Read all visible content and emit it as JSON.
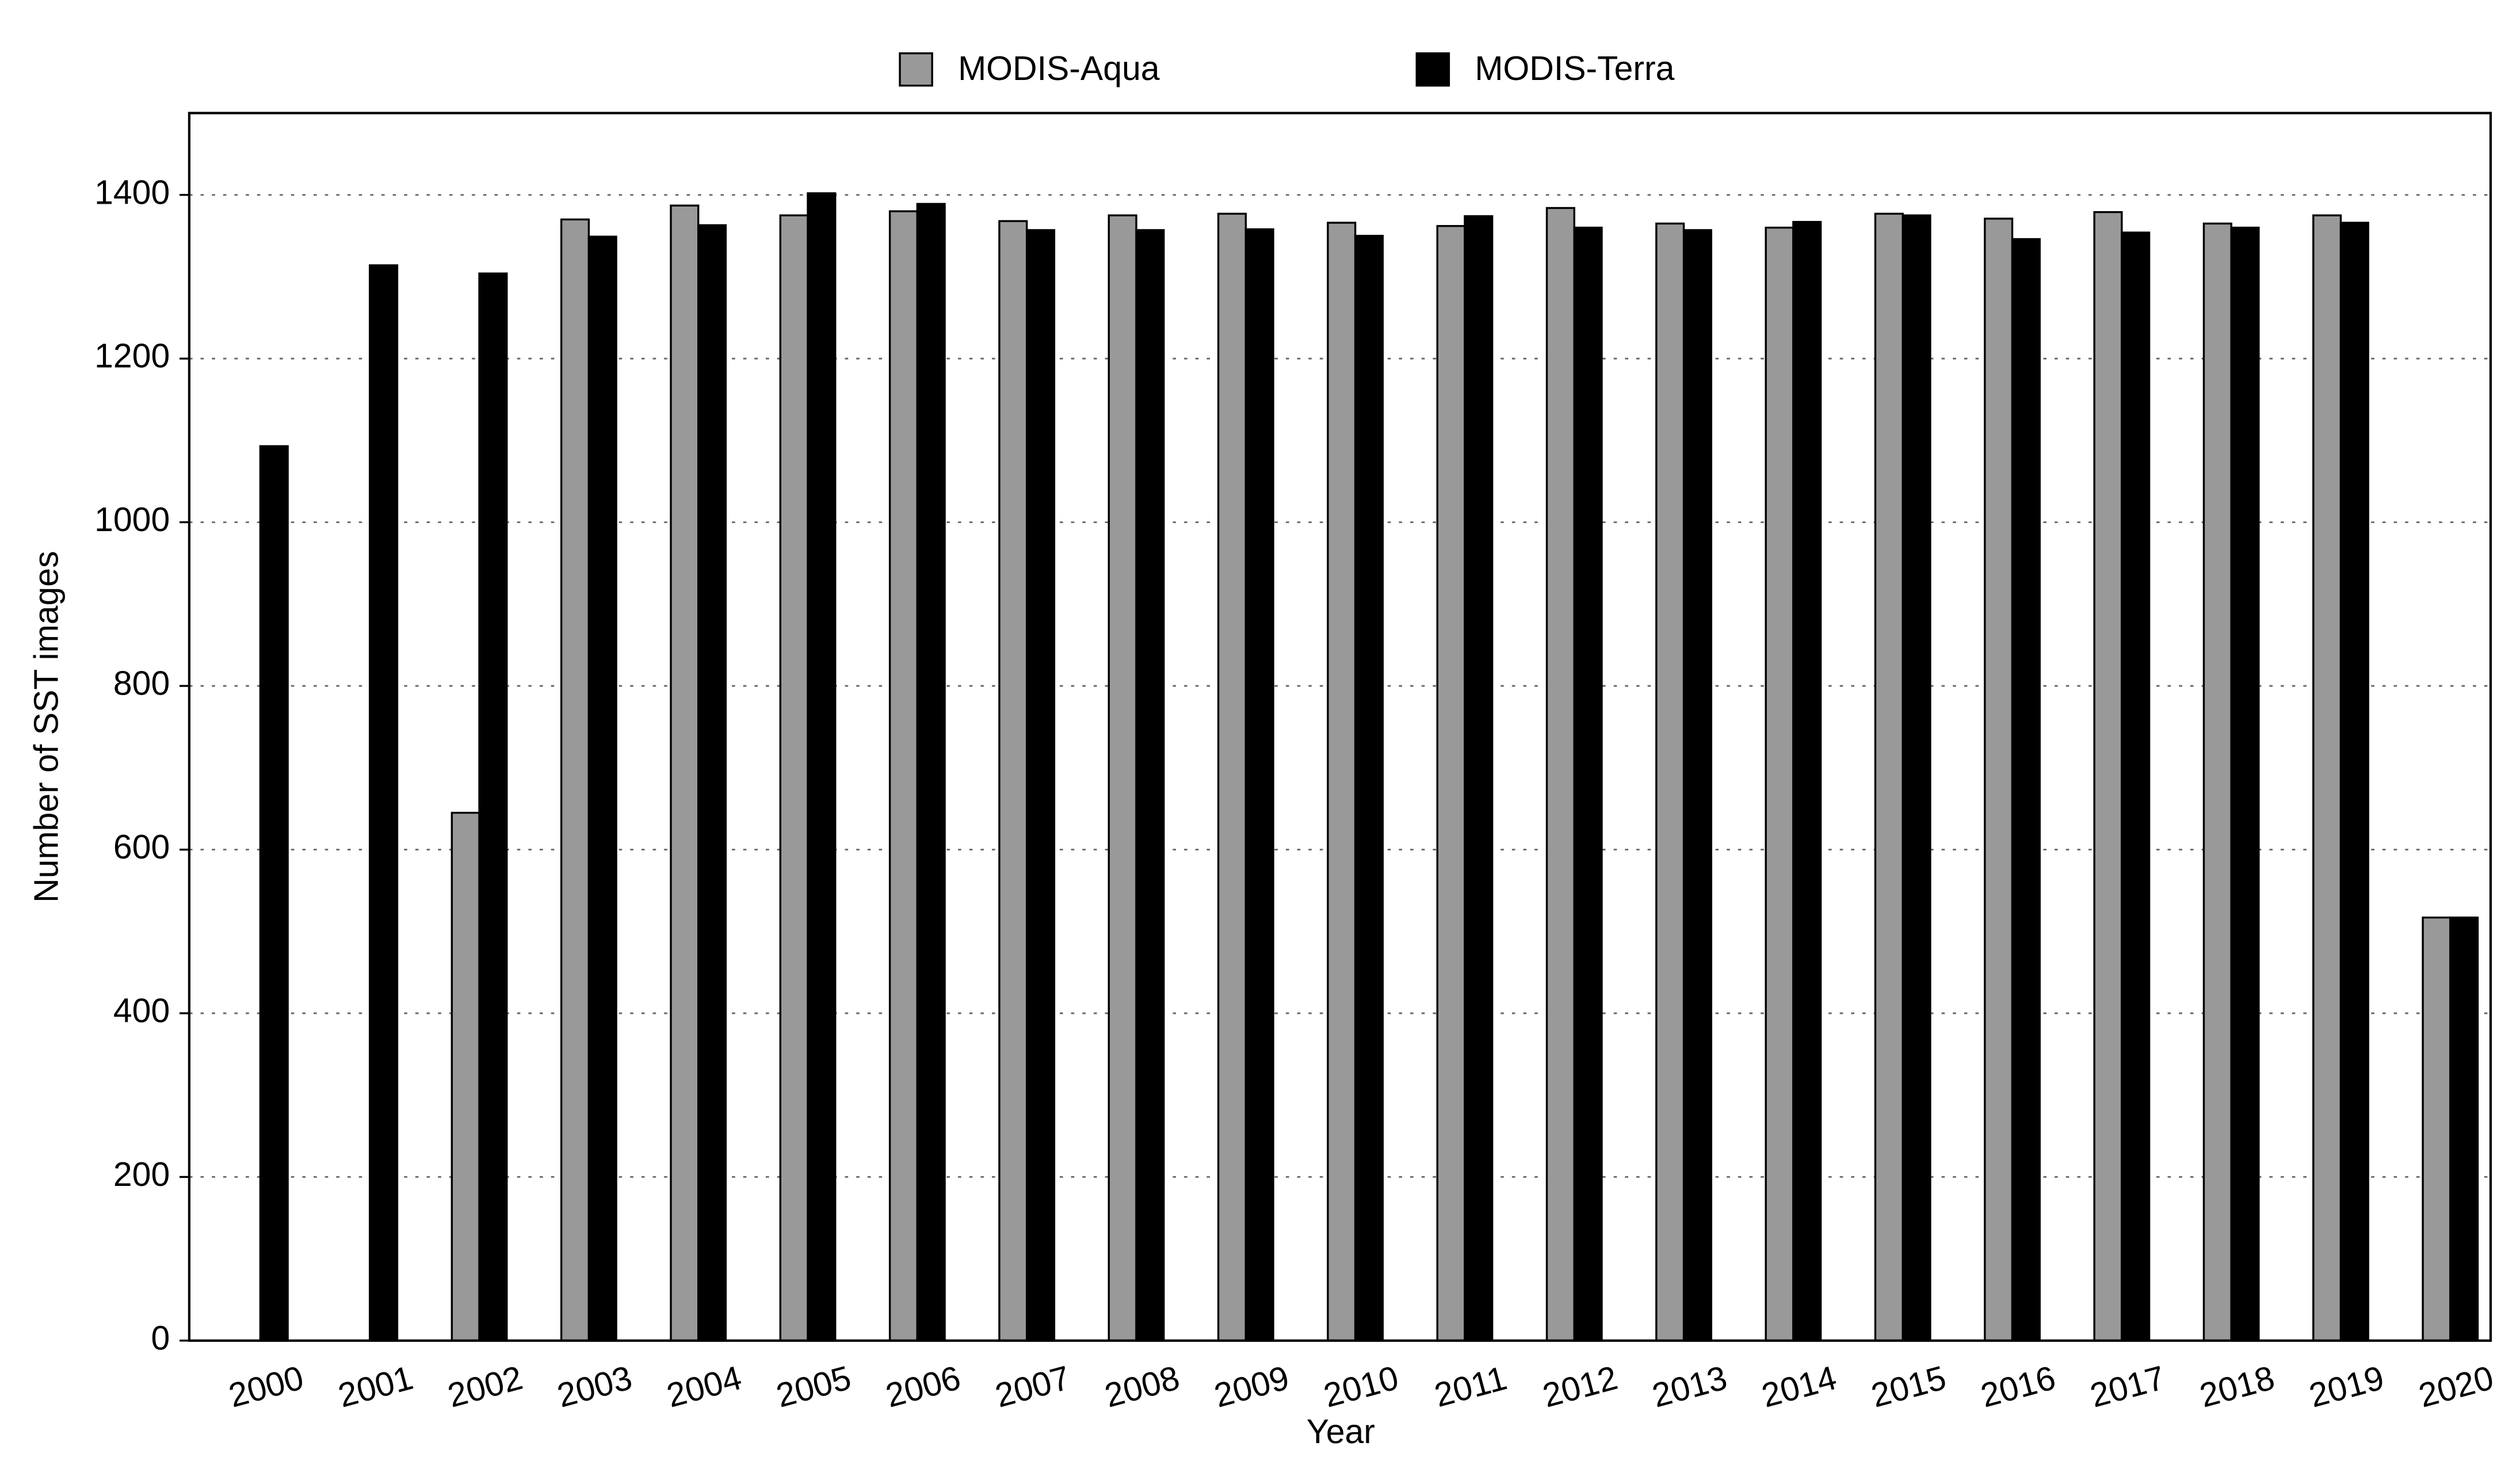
{
  "chart_data": {
    "type": "bar",
    "x_label": "Year",
    "y_label": "Number of SST images",
    "categories": [
      "2000",
      "2001",
      "2002",
      "2003",
      "2004",
      "2005",
      "2006",
      "2007",
      "2008",
      "2009",
      "2010",
      "2011",
      "2012",
      "2013",
      "2014",
      "2015",
      "2016",
      "2017",
      "2018",
      "2019",
      "2020"
    ],
    "series": [
      {
        "name": "MODIS-Aqua",
        "color": "#999999",
        "values": [
          null,
          null,
          645,
          1370,
          1387,
          1375,
          1380,
          1368,
          1375,
          1377,
          1366,
          1362,
          1384,
          1365,
          1360,
          1377,
          1371,
          1379,
          1365,
          1375,
          517
        ]
      },
      {
        "name": "MODIS-Terra",
        "color": "#000000",
        "values": [
          1093,
          1314,
          1304,
          1349,
          1363,
          1402,
          1389,
          1357,
          1357,
          1358,
          1350,
          1374,
          1360,
          1357,
          1367,
          1375,
          1346,
          1354,
          1360,
          1366,
          517
        ]
      }
    ],
    "ylim": [
      0,
      1500
    ],
    "yticks": [
      0,
      200,
      400,
      600,
      800,
      1000,
      1200,
      1400
    ],
    "grid": true,
    "legend": "top"
  }
}
